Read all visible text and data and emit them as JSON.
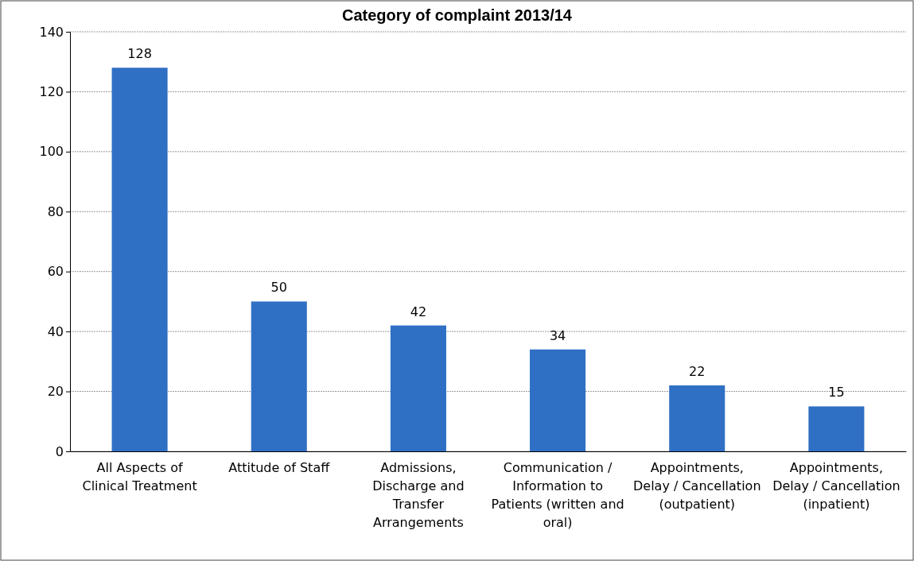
{
  "chart_data": {
    "type": "bar",
    "title": "Category of complaint 2013/14",
    "categories": [
      "All Aspects of Clinical Treatment",
      "Attitude of Staff",
      "Admissions, Discharge and Transfer Arrangements",
      "Communication / Information to Patients (written and oral)",
      "Appointments, Delay / Cancellation (outpatient)",
      "Appointments, Delay / Cancellation (inpatient)"
    ],
    "values": [
      128,
      50,
      42,
      34,
      22,
      15
    ],
    "color": "#2f6fc4",
    "data_labels": true,
    "ylim": [
      0,
      140
    ],
    "yticks": [
      0,
      20,
      40,
      60,
      80,
      100,
      120,
      140
    ],
    "grid": "y"
  }
}
